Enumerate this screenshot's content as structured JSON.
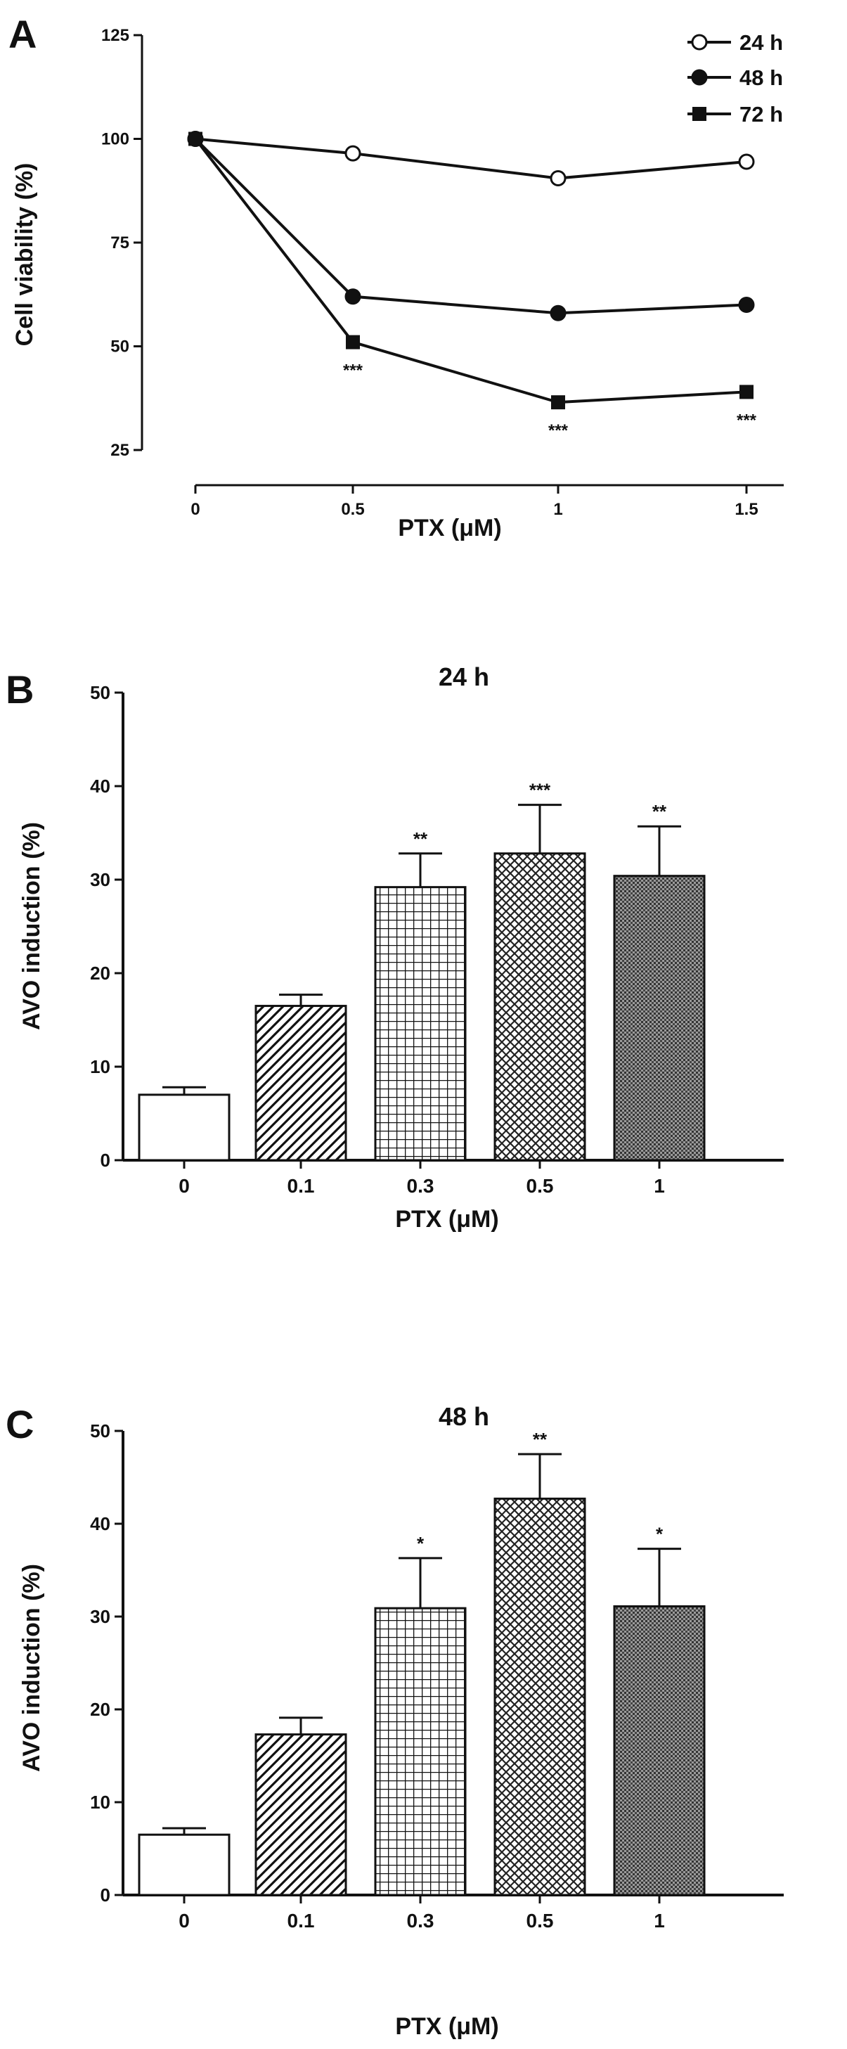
{
  "chart_data": [
    {
      "panel": "A",
      "type": "line",
      "title": "",
      "xlabel": "PTX (μM)",
      "ylabel": "Cell viability (%)",
      "x": [
        0,
        0.5,
        1,
        1.5
      ],
      "x_tick_labels": [
        "0",
        "0.5",
        "1",
        "1.5"
      ],
      "ylim": [
        25,
        125
      ],
      "y_ticks": [
        25,
        50,
        75,
        100,
        125
      ],
      "grid": false,
      "legend_position": "top-right",
      "series": [
        {
          "name": "24 h",
          "marker": "open-circle",
          "values": [
            100,
            96.5,
            90.5,
            94.5
          ],
          "sig": [
            "",
            "",
            "",
            ""
          ]
        },
        {
          "name": "48 h",
          "marker": "filled-circle",
          "values": [
            100,
            62,
            58,
            60
          ],
          "sig": [
            "",
            "",
            "",
            ""
          ]
        },
        {
          "name": "72 h",
          "marker": "filled-square",
          "values": [
            100,
            51,
            36.5,
            39
          ],
          "sig": [
            "",
            "***",
            "***",
            "***"
          ]
        }
      ]
    },
    {
      "panel": "B",
      "type": "bar",
      "title": "24 h",
      "xlabel": "PTX (μM)",
      "ylabel": "AVO induction (%)",
      "categories": [
        "0",
        "0.1",
        "0.3",
        "0.5",
        "1"
      ],
      "values": [
        7,
        16.5,
        29.2,
        32.8,
        30.4
      ],
      "errors": [
        0.8,
        1.2,
        3.6,
        5.2,
        5.3
      ],
      "sig": [
        "",
        "",
        "**",
        "***",
        "**"
      ],
      "patterns": [
        "none",
        "diagonal",
        "grid",
        "crosshatch",
        "dots"
      ],
      "ylim": [
        0,
        50
      ],
      "y_ticks": [
        0,
        10,
        20,
        30,
        40,
        50
      ],
      "grid": false
    },
    {
      "panel": "C",
      "type": "bar",
      "title": "48 h",
      "xlabel": "PTX (μM)",
      "ylabel": "AVO induction (%)",
      "categories": [
        "0",
        "0.1",
        "0.3",
        "0.5",
        "1"
      ],
      "values": [
        6.5,
        17.3,
        30.9,
        42.7,
        31.1
      ],
      "errors": [
        0.7,
        1.8,
        5.4,
        4.8,
        6.2
      ],
      "sig": [
        "",
        "",
        "*",
        "**",
        "*"
      ],
      "patterns": [
        "none",
        "diagonal",
        "grid",
        "crosshatch",
        "dots"
      ],
      "ylim": [
        0,
        50
      ],
      "y_ticks": [
        0,
        10,
        20,
        30,
        40,
        50
      ],
      "grid": false
    }
  ]
}
